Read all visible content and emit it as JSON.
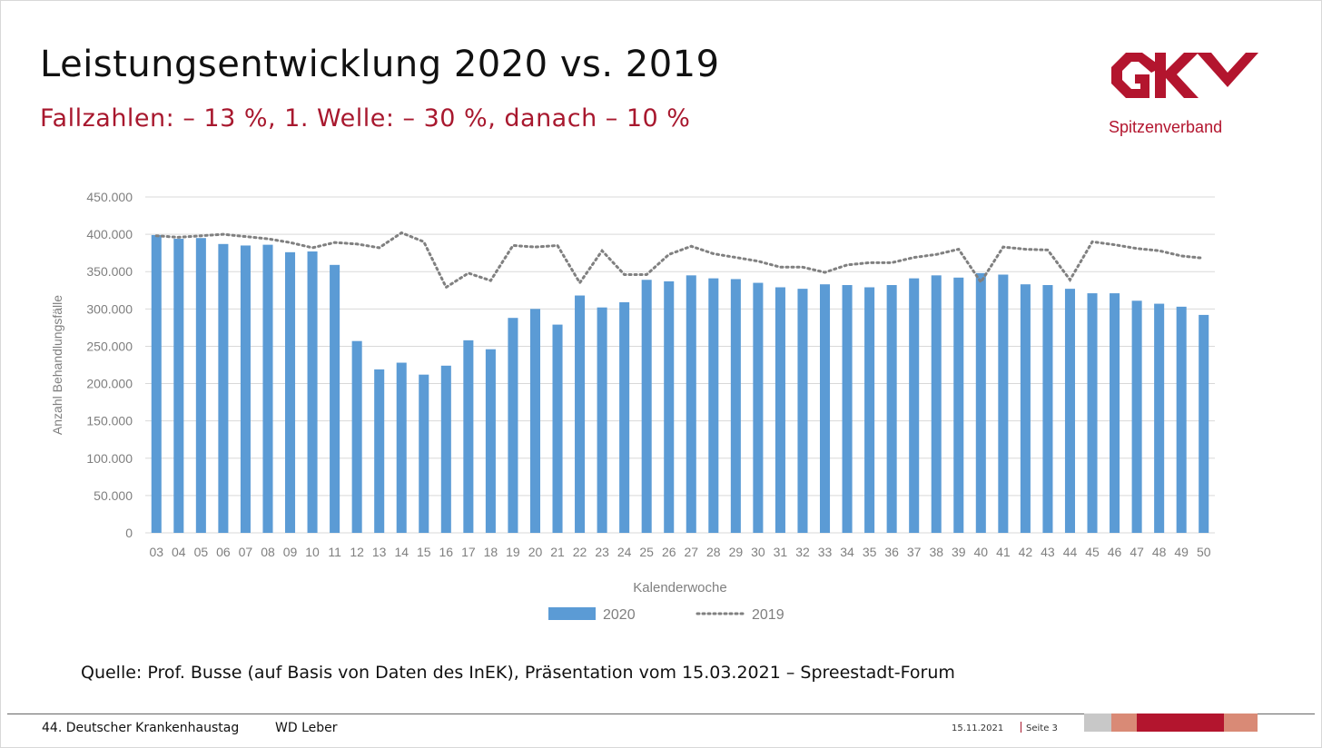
{
  "slide": {
    "title": "Leistungsentwicklung 2020 vs. 2019",
    "subtitle": "Fallzahlen: – 13 %, 1. Welle: – 30 %, danach – 10 %",
    "logo_sub": "Spitzenverband",
    "source": "Quelle: Prof. Busse (auf Basis von Daten des InEK), Präsentation vom 15.03.2021 – Spreestadt-Forum"
  },
  "footer": {
    "event": "44. Deutscher Krankenhaustag",
    "author": "WD Leber",
    "date": "15.11.2021",
    "page": "Seite 3"
  },
  "colors": {
    "accent": "#a8182e",
    "bar": "#5b9bd5",
    "line": "#808080",
    "grid": "#d9d9d9",
    "stripe_grey": "#c8c8c8",
    "stripe_salmon": "#d98a76",
    "stripe_red": "#b3152e"
  },
  "chart_data": {
    "type": "bar",
    "xlabel": "Kalenderwoche",
    "ylabel": "Anzahl Behandlungsfälle",
    "ylim": [
      0,
      450000
    ],
    "yticks": [
      0,
      50000,
      100000,
      150000,
      200000,
      250000,
      300000,
      350000,
      400000,
      450000
    ],
    "ytick_labels": [
      "0",
      "50.000",
      "100.000",
      "150.000",
      "200.000",
      "250.000",
      "300.000",
      "350.000",
      "400.000",
      "450.000"
    ],
    "grid": true,
    "legend_position": "bottom",
    "categories": [
      "03",
      "04",
      "05",
      "06",
      "07",
      "08",
      "09",
      "10",
      "11",
      "12",
      "13",
      "14",
      "15",
      "16",
      "17",
      "18",
      "19",
      "20",
      "21",
      "22",
      "23",
      "24",
      "25",
      "26",
      "27",
      "28",
      "29",
      "30",
      "31",
      "32",
      "33",
      "34",
      "35",
      "36",
      "37",
      "38",
      "39",
      "40",
      "41",
      "42",
      "43",
      "44",
      "45",
      "46",
      "47",
      "48",
      "49",
      "50"
    ],
    "series": [
      {
        "name": "2020",
        "style": "bar",
        "values": [
          399000,
          394000,
          395000,
          387000,
          385000,
          386000,
          376000,
          377000,
          359000,
          257000,
          219000,
          228000,
          212000,
          224000,
          258000,
          246000,
          288000,
          300000,
          279000,
          318000,
          302000,
          309000,
          339000,
          337000,
          345000,
          341000,
          340000,
          335000,
          329000,
          327000,
          333000,
          332000,
          329000,
          332000,
          341000,
          345000,
          342000,
          348000,
          346000,
          333000,
          332000,
          327000,
          321000,
          321000,
          311000,
          307000,
          303000,
          292000
        ]
      },
      {
        "name": "2019",
        "style": "dotted-line",
        "values": [
          398000,
          396000,
          398000,
          400000,
          397000,
          394000,
          389000,
          382000,
          389000,
          387000,
          382000,
          402000,
          390000,
          329000,
          348000,
          338000,
          385000,
          383000,
          385000,
          335000,
          378000,
          346000,
          346000,
          373000,
          384000,
          374000,
          369000,
          364000,
          356000,
          356000,
          349000,
          359000,
          362000,
          362000,
          369000,
          373000,
          380000,
          336000,
          383000,
          380000,
          379000,
          339000,
          390000,
          386000,
          381000,
          378000,
          371000,
          368000
        ]
      }
    ]
  }
}
